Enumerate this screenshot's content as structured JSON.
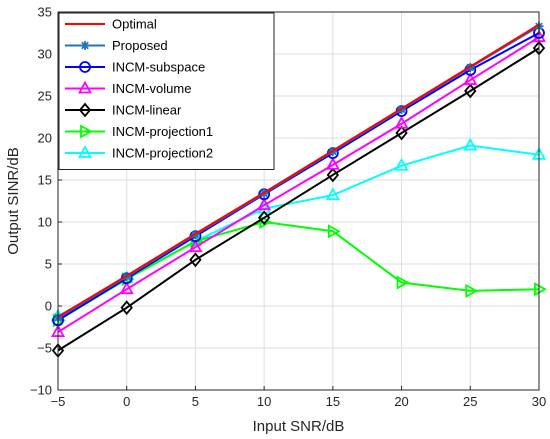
{
  "chart_data": {
    "type": "line",
    "title": "",
    "xlabel": "Input SNR/dB",
    "ylabel": "Output SINR/dB",
    "xlim": [
      -5,
      30
    ],
    "ylim": [
      -10,
      35
    ],
    "x_ticks": [
      -5,
      0,
      5,
      10,
      15,
      20,
      25,
      30
    ],
    "y_ticks": [
      -10,
      -5,
      0,
      5,
      10,
      15,
      20,
      25,
      30,
      35
    ],
    "grid": true,
    "legend_position": "top-left",
    "x": [
      -5,
      0,
      5,
      10,
      15,
      20,
      25,
      30
    ],
    "series": [
      {
        "name": "Optimal",
        "color": "#ff0000",
        "marker": "none",
        "values": [
          -1.3,
          3.6,
          8.6,
          13.5,
          18.5,
          23.5,
          28.5,
          33.5
        ]
      },
      {
        "name": "Proposed",
        "color": "#1f77b4",
        "marker": "asterisk",
        "values": [
          -1.4,
          3.5,
          8.5,
          13.4,
          18.4,
          23.4,
          28.4,
          33.3
        ]
      },
      {
        "name": "INCM-subspace",
        "color": "#0000ff",
        "marker": "circle",
        "values": [
          -1.7,
          3.3,
          8.3,
          13.3,
          18.2,
          23.2,
          28.1,
          32.5
        ]
      },
      {
        "name": "INCM-volume",
        "color": "#ff00ff",
        "marker": "triangle-up",
        "values": [
          -3.1,
          2.0,
          7.0,
          12.0,
          16.8,
          21.7,
          26.9,
          32.0
        ]
      },
      {
        "name": "INCM-linear",
        "color": "#000000",
        "marker": "diamond",
        "values": [
          -5.3,
          -0.2,
          5.5,
          10.5,
          15.6,
          20.6,
          25.6,
          30.7
        ]
      },
      {
        "name": "INCM-projection1",
        "color": "#00ff00",
        "marker": "triangle-right",
        "values": [
          -1.7,
          3.2,
          7.7,
          10.0,
          8.9,
          2.8,
          1.8,
          2.0
        ]
      },
      {
        "name": "INCM-projection2",
        "color": "#00ffff",
        "marker": "triangle-up",
        "values": [
          -1.2,
          3.3,
          7.7,
          11.6,
          13.2,
          16.7,
          19.1,
          18.0
        ]
      }
    ]
  }
}
